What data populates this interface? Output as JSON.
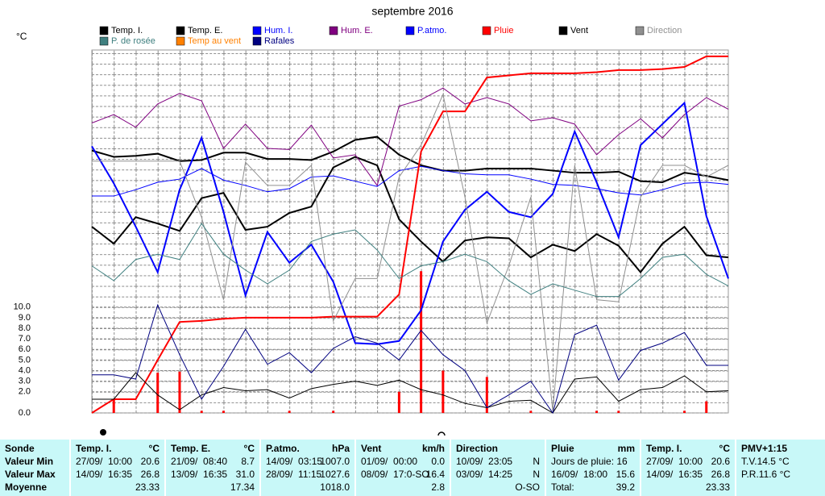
{
  "chart_data": {
    "type": "line",
    "title": "septembre 2016",
    "y_label": "°C",
    "ylim": [
      0,
      34.3
    ],
    "yticks": [
      {
        "value": 0,
        "label": "0.0"
      },
      {
        "value": 2,
        "label": "2.0"
      },
      {
        "value": 3,
        "label": "3.0"
      },
      {
        "value": 4,
        "label": "4.0"
      },
      {
        "value": 5,
        "label": "5.0"
      },
      {
        "value": 6,
        "label": "6.0"
      },
      {
        "value": 7,
        "label": "7.0"
      },
      {
        "value": 8,
        "label": "8.0"
      },
      {
        "value": 9,
        "label": "9.0"
      },
      {
        "value": 10,
        "label": "10.0"
      }
    ],
    "grid": true,
    "series": [
      {
        "name": "Temp. I.",
        "color": "#000000",
        "width": 2,
        "values": [
          24.8,
          24.2,
          24.3,
          24.5,
          23.8,
          23.9,
          24.6,
          24.6,
          24.0,
          24.0,
          23.9,
          24.7,
          25.8,
          26.1,
          24.4,
          23.4,
          22.9,
          22.9,
          23.1,
          23.1,
          23.1,
          22.9,
          22.7,
          22.7,
          22.8,
          21.9,
          21.8,
          22.7,
          22.4,
          22.0
        ]
      },
      {
        "name": "Temp. E.",
        "color": "#000000",
        "width": 2,
        "values": [
          17.6,
          16.0,
          18.5,
          17.9,
          17.2,
          20.3,
          20.8,
          17.3,
          17.6,
          18.9,
          19.5,
          23.2,
          24.2,
          23.4,
          18.3,
          16.2,
          14.3,
          16.3,
          16.6,
          16.5,
          14.7,
          15.9,
          15.3,
          16.9,
          15.8,
          13.3,
          16.0,
          17.6,
          14.9,
          14.7
        ]
      },
      {
        "name": "Hum. I.",
        "color": "#0000ff",
        "width": 1,
        "values": [
          20.5,
          20.5,
          21.1,
          21.8,
          22.1,
          23.1,
          22.0,
          21.5,
          20.9,
          21.2,
          22.3,
          22.4,
          21.9,
          21.4,
          22.9,
          23.3,
          22.9,
          22.6,
          22.5,
          22.5,
          22.1,
          21.6,
          21.5,
          21.2,
          20.8,
          20.6,
          21.1,
          21.7,
          21.8,
          21.6
        ]
      },
      {
        "name": "Hum. E.",
        "color": "#800080",
        "width": 1,
        "values": [
          27.4,
          28.2,
          27.0,
          29.2,
          30.2,
          29.5,
          25.0,
          27.3,
          25.0,
          24.9,
          27.2,
          24.1,
          24.4,
          21.5,
          29.0,
          29.6,
          30.7,
          29.2,
          29.8,
          29.2,
          27.6,
          27.9,
          27.3,
          24.4,
          26.3,
          27.8,
          26.0,
          28.2,
          29.8,
          28.7
        ]
      },
      {
        "name": "P.atmo.",
        "color": "#0000ff",
        "width": 2,
        "values": [
          25.2,
          21.7,
          17.6,
          13.3,
          21.1,
          26.0,
          19.0,
          11.1,
          17.1,
          14.2,
          15.9,
          12.4,
          6.6,
          6.5,
          6.8,
          9.7,
          16.2,
          19.2,
          20.9,
          19.0,
          18.5,
          20.7,
          26.6,
          21.8,
          16.6,
          25.3,
          27.3,
          29.3,
          18.6,
          12.7
        ]
      },
      {
        "name": "Pluie",
        "color": "#ff0000",
        "width": 2,
        "values": [
          0,
          1.3,
          1.3,
          5.0,
          8.6,
          8.7,
          8.9,
          9.0,
          9.0,
          9.0,
          9.0,
          9.1,
          9.1,
          9.1,
          11.2,
          24.7,
          28.5,
          28.5,
          31.7,
          31.9,
          32.1,
          32.1,
          32.1,
          32.2,
          32.4,
          32.4,
          32.5,
          32.7,
          33.7,
          33.7
        ]
      },
      {
        "name": "Vent",
        "color": "#000000",
        "width": 1,
        "values": [
          1.3,
          1.3,
          3.8,
          1.7,
          0.3,
          1.7,
          2.4,
          2.1,
          2.2,
          1.4,
          2.3,
          2.7,
          3.0,
          2.6,
          3.1,
          2.2,
          1.7,
          0.9,
          0.5,
          1.1,
          1.2,
          0,
          3.2,
          3.4,
          1.1,
          2.2,
          2.4,
          3.5,
          2.0,
          2.1
        ]
      },
      {
        "name": "Direction",
        "color": "#909090",
        "width": 1,
        "values": [
          23.8,
          23.8,
          23.8,
          23.8,
          23.8,
          18.5,
          10.7,
          23.7,
          21.5,
          21.5,
          23.4,
          8.7,
          12.7,
          12.7,
          22.3,
          25.3,
          30.1,
          20.4,
          8.5,
          13.9,
          20.4,
          0.2,
          23.4,
          10.7,
          10.5,
          20.4,
          23.4,
          23.4,
          22.3,
          23.4
        ]
      },
      {
        "name": "P. de rosée",
        "color": "#408080",
        "width": 1,
        "values": [
          13.9,
          12.5,
          14.5,
          15.0,
          14.5,
          17.9,
          15.0,
          13.5,
          12.2,
          13.5,
          16.2,
          16.9,
          17.3,
          15.4,
          12.7,
          13.9,
          14.3,
          15.0,
          14.3,
          12.5,
          11.2,
          12.2,
          11.6,
          11.0,
          11.0,
          12.7,
          14.7,
          15.0,
          13.1,
          12.0
        ]
      },
      {
        "name": "Temp au vent",
        "color": "#ff8000",
        "width": 1,
        "values": [
          null,
          null,
          null,
          null,
          null,
          null,
          null,
          null,
          null,
          null,
          null,
          null,
          null,
          null,
          null,
          null,
          null,
          null,
          null,
          null,
          null,
          null,
          null,
          null,
          null,
          null,
          null,
          null,
          null,
          null
        ]
      },
      {
        "name": "Rafales",
        "color": "#000080",
        "width": 1,
        "values": [
          3.6,
          3.6,
          3.2,
          10.2,
          5.5,
          1.3,
          4.4,
          7.9,
          4.6,
          5.7,
          3.8,
          6.1,
          7.2,
          6.6,
          5.0,
          7.8,
          5.5,
          4.0,
          0.5,
          1.7,
          3.0,
          0,
          7.4,
          8.3,
          3.1,
          5.9,
          6.6,
          7.6,
          4.5,
          4.5
        ]
      }
    ],
    "rain_bars": {
      "color": "#ff0000",
      "values": [
        0,
        1.3,
        0,
        3.8,
        3.9,
        0.2,
        0.2,
        0,
        0,
        0.2,
        0,
        0.2,
        0,
        0,
        2.0,
        13.4,
        4.0,
        0,
        3.4,
        0,
        0.2,
        0,
        0,
        0.2,
        0.2,
        0,
        0,
        0.2,
        1.1,
        0
      ]
    }
  },
  "table": {
    "rows": [
      [
        {
          "left": "Sonde"
        },
        {
          "left": "Temp. I.",
          "right": "°C"
        },
        {
          "left": "Temp. E.",
          "right": "°C"
        },
        {
          "left": "P.atmo.",
          "right": "hPa"
        },
        {
          "left": "Vent",
          "right": "km/h"
        },
        {
          "left": "Direction"
        },
        {
          "left": "Pluie",
          "right": "mm"
        },
        {
          "left": "Temp. I.",
          "right": "°C"
        },
        {
          "left": "PMV+1:15"
        }
      ],
      [
        {
          "left": "Valeur Min"
        },
        {
          "left": "27/09/  10:00",
          "right": "20.6"
        },
        {
          "left": "21/09/  08:40",
          "right": "8.7"
        },
        {
          "left": "14/09/  03:15",
          "right": "1007.0"
        },
        {
          "left": "01/09/  00:00",
          "right": "0.0"
        },
        {
          "left": "10/09/  23:05",
          "right": "N"
        },
        {
          "left": "Jours de pluie: 16"
        },
        {
          "left": "27/09/  10:00",
          "right": "20.6"
        },
        {
          "left": "T.V.14.5 °C"
        }
      ],
      [
        {
          "left": "Valeur Max"
        },
        {
          "left": "14/09/  16:35",
          "right": "26.8"
        },
        {
          "left": "13/09/  16:35",
          "right": "31.0"
        },
        {
          "left": "28/09/  11:15",
          "right": "1027.6"
        },
        {
          "left": "08/09/  17:0-SO",
          "right": "16.4"
        },
        {
          "left": "03/09/  14:25",
          "right": "N"
        },
        {
          "left": "16/09/  18:00",
          "right": "15.6"
        },
        {
          "left": "14/09/  16:35",
          "right": "26.8"
        },
        {
          "left": "P.R.11.6 °C"
        }
      ],
      [
        {
          "left": "Moyenne"
        },
        {
          "right": "23.33"
        },
        {
          "right": "17.34"
        },
        {
          "right": "1018.0"
        },
        {
          "right": "2.8"
        },
        {
          "right": "O-SO"
        },
        {
          "left": "Total:",
          "right": "39.2"
        },
        {
          "right": "23.33"
        },
        {}
      ]
    ]
  }
}
